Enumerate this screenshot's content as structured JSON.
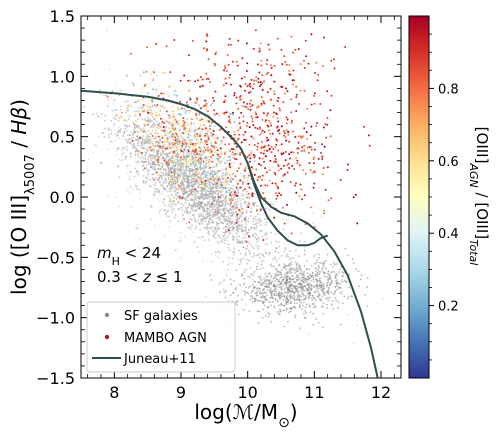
{
  "chart_data": {
    "type": "scatter",
    "xlabel": "log(M/M⊙)",
    "ylabel": "log ([O III]λ5007 / Hβ)",
    "xlim": [
      7.5,
      12.3
    ],
    "ylim": [
      -1.5,
      1.5
    ],
    "xticks": [
      "8",
      "9",
      "10",
      "11",
      "12"
    ],
    "yticks": [
      "1.5",
      "1.0",
      "0.5",
      "0.0",
      "−0.5",
      "−1.0",
      "−1.5"
    ],
    "grid": false,
    "legend_position": "lower-left",
    "annotations": {
      "line1": "mH < 24",
      "line2": "0.3 < z ≤ 1"
    },
    "colorbar": {
      "label": "[OIII]AGN / [OIII]Total",
      "range": [
        0.0,
        1.0
      ],
      "ticks": [
        "0.2",
        "0.4",
        "0.6",
        "0.8"
      ],
      "colormap": [
        "#313695",
        "#4575b4",
        "#74add1",
        "#abd9e9",
        "#e0f3f8",
        "#ffffbf",
        "#fee090",
        "#fdae61",
        "#f46d43",
        "#d73027",
        "#a50026"
      ]
    },
    "series": [
      {
        "name": "SF galaxies",
        "marker": "dot",
        "color": "#8c8c8c",
        "clouds": [
          {
            "x_center": 9.2,
            "y_center": 0.15,
            "n": 2200
          },
          {
            "x_center": 10.7,
            "y_center": -0.75,
            "n": 900
          }
        ]
      },
      {
        "name": "MAMBO AGN",
        "marker": "dot",
        "color": "#b2182b",
        "n": 1500,
        "color_value_range": [
          0.0,
          1.0
        ]
      },
      {
        "name": "Juneau+11",
        "type": "line",
        "color": "#2f4f4f",
        "upper_branch": [
          [
            7.5,
            0.88
          ],
          [
            8.0,
            0.86
          ],
          [
            8.5,
            0.83
          ],
          [
            8.8,
            0.8
          ],
          [
            9.0,
            0.77
          ],
          [
            9.2,
            0.73
          ],
          [
            9.4,
            0.67
          ],
          [
            9.6,
            0.58
          ],
          [
            9.8,
            0.47
          ],
          [
            9.9,
            0.4
          ],
          [
            10.0,
            0.28
          ],
          [
            10.1,
            0.12
          ],
          [
            10.2,
            0.0
          ],
          [
            10.35,
            -0.08
          ],
          [
            10.5,
            -0.13
          ],
          [
            10.7,
            -0.16
          ],
          [
            10.9,
            -0.22
          ],
          [
            11.1,
            -0.31
          ],
          [
            11.3,
            -0.45
          ],
          [
            11.5,
            -0.65
          ],
          [
            11.7,
            -0.95
          ],
          [
            11.85,
            -1.25
          ],
          [
            11.95,
            -1.5
          ]
        ],
        "lower_branch": [
          [
            10.0,
            0.28
          ],
          [
            10.1,
            0.1
          ],
          [
            10.2,
            -0.05
          ],
          [
            10.3,
            -0.17
          ],
          [
            10.45,
            -0.28
          ],
          [
            10.6,
            -0.36
          ],
          [
            10.75,
            -0.4
          ],
          [
            10.9,
            -0.4
          ],
          [
            11.0,
            -0.38
          ],
          [
            11.1,
            -0.34
          ],
          [
            11.2,
            -0.32
          ]
        ]
      }
    ]
  }
}
